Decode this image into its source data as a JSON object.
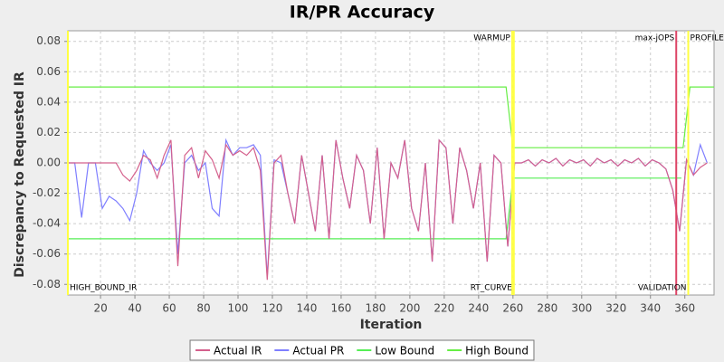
{
  "chart_data": {
    "type": "line",
    "title": "IR/PR Accuracy",
    "x_label": "Iteration",
    "y_label": "Discrepancy to Requested IR",
    "xlim": [
      1,
      377
    ],
    "ylim": [
      -0.087,
      0.087
    ],
    "xticks": [
      20,
      40,
      60,
      80,
      100,
      120,
      140,
      160,
      180,
      200,
      220,
      240,
      260,
      280,
      300,
      320,
      340,
      360
    ],
    "yticks": [
      -0.08,
      -0.06,
      -0.04,
      -0.02,
      {
        "value": 0,
        "label": "0.00"
      },
      0.02,
      0.04,
      0.06,
      0.08
    ],
    "grid": true,
    "legend": "bottom",
    "series": [
      {
        "name": "Actual IR",
        "color": "#d4608c",
        "x": [
          1,
          5,
          9,
          13,
          17,
          21,
          25,
          29,
          33,
          37,
          41,
          45,
          49,
          53,
          57,
          61,
          65,
          69,
          73,
          77,
          81,
          85,
          89,
          93,
          97,
          101,
          105,
          109,
          113,
          117,
          121,
          125,
          129,
          133,
          137,
          141,
          145,
          149,
          153,
          157,
          161,
          165,
          169,
          173,
          177,
          181,
          185,
          189,
          193,
          197,
          201,
          205,
          209,
          213,
          217,
          221,
          225,
          229,
          233,
          237,
          241,
          245,
          249,
          253,
          257,
          261,
          265,
          269,
          273,
          277,
          281,
          285,
          289,
          293,
          297,
          301,
          305,
          309,
          313,
          317,
          321,
          325,
          329,
          333,
          337,
          341,
          345,
          349,
          353,
          357,
          361,
          365,
          369,
          373
        ],
        "values": [
          0,
          0,
          0,
          0,
          0,
          0,
          0,
          0,
          -0.008,
          -0.012,
          -0.005,
          0.005,
          0.002,
          -0.01,
          0.005,
          0.015,
          -0.068,
          0.005,
          0.01,
          -0.01,
          0.008,
          0.002,
          -0.01,
          0.012,
          0.005,
          0.008,
          0.005,
          0.01,
          -0.005,
          -0.077,
          0,
          0.005,
          -0.02,
          -0.04,
          0.005,
          -0.02,
          -0.045,
          0.005,
          -0.05,
          0.015,
          -0.01,
          -0.03,
          0.005,
          -0.005,
          -0.04,
          0.01,
          -0.05,
          0,
          -0.01,
          0.015,
          -0.03,
          -0.045,
          0,
          -0.065,
          0.015,
          0.01,
          -0.04,
          0.01,
          -0.005,
          -0.03,
          0,
          -0.065,
          0.005,
          0,
          -0.055,
          0,
          0,
          0.002,
          -0.002,
          0.002,
          0,
          0.003,
          -0.002,
          0.002,
          0,
          0.002,
          -0.002,
          0.003,
          0,
          0.002,
          -0.002,
          0.002,
          0,
          0.003,
          -0.002,
          0.002,
          0,
          -0.004,
          -0.018,
          -0.045,
          0.002,
          -0.008,
          -0.003,
          0
        ]
      },
      {
        "name": "Actual PR",
        "color": "#7f7fff",
        "x": [
          1,
          5,
          9,
          13,
          17,
          21,
          25,
          29,
          33,
          37,
          41,
          45,
          49,
          53,
          57,
          61,
          65,
          69,
          73,
          77,
          81,
          85,
          89,
          93,
          97,
          101,
          105,
          109,
          113,
          117,
          121,
          125,
          129,
          133,
          137,
          141,
          145,
          149,
          153,
          157,
          161,
          165,
          169,
          173,
          177,
          181,
          185,
          189,
          193,
          197,
          201,
          205,
          209,
          213,
          217,
          221,
          225,
          229,
          233,
          237,
          241,
          245,
          249,
          253,
          257,
          261,
          265,
          269,
          273,
          277,
          281,
          285,
          289,
          293,
          297,
          301,
          305,
          309,
          313,
          317,
          321,
          325,
          329,
          333,
          337,
          341,
          345,
          349,
          353,
          357,
          361,
          365,
          369,
          373
        ],
        "values": [
          0,
          0,
          -0.036,
          0,
          0,
          -0.03,
          -0.022,
          -0.025,
          -0.03,
          -0.038,
          -0.02,
          0.008,
          0,
          -0.005,
          0,
          0.012,
          -0.06,
          0,
          0.005,
          -0.005,
          0,
          -0.03,
          -0.035,
          0.015,
          0.005,
          0.01,
          0.01,
          0.012,
          0.005,
          -0.075,
          0.002,
          0,
          -0.02,
          -0.04,
          0.005,
          -0.02,
          -0.045,
          0.005,
          -0.05,
          0.015,
          -0.01,
          -0.03,
          0.005,
          -0.005,
          -0.04,
          0.01,
          -0.05,
          0,
          -0.01,
          0.015,
          -0.03,
          -0.045,
          0,
          -0.065,
          0.015,
          0.01,
          -0.04,
          0.01,
          -0.005,
          -0.03,
          0,
          -0.065,
          0.005,
          0,
          -0.055,
          0,
          0,
          0.002,
          -0.002,
          0.002,
          0,
          0.003,
          -0.002,
          0.002,
          0,
          0.002,
          -0.002,
          0.003,
          0,
          0.002,
          -0.002,
          0.002,
          0,
          0.003,
          -0.002,
          0.002,
          0,
          -0.004,
          -0.018,
          -0.045,
          0.002,
          -0.008,
          0.012,
          0
        ]
      },
      {
        "name": "Low Bound",
        "color": "#55ee55",
        "x": [
          1,
          256,
          260,
          358
        ],
        "values": [
          -0.05,
          -0.05,
          -0.01,
          -0.01
        ]
      },
      {
        "name": "High Bound",
        "color": "#66ee44",
        "x": [
          1,
          256,
          260,
          359,
          363,
          377
        ],
        "values": [
          0.05,
          0.05,
          0.01,
          0.01,
          0.05,
          0.05
        ]
      }
    ],
    "markers": [
      {
        "label": "HIGH_BOUND_IR",
        "x": 1,
        "color": "#ffff44",
        "position": "bottom",
        "anchor": "start"
      },
      {
        "label": "WARMUP",
        "x": 259.5,
        "color": "#ffff44",
        "position": "top",
        "anchor": "end"
      },
      {
        "label": "RT_CURVE",
        "x": 260.5,
        "color": "#ffff44",
        "position": "bottom",
        "anchor": "end"
      },
      {
        "label": "max-jOPS",
        "x": 355,
        "color": "#dd4466",
        "position": "top",
        "anchor": "end"
      },
      {
        "label": "VALIDATION",
        "x": 362,
        "color": "#ffff44",
        "position": "bottom",
        "anchor": "end"
      },
      {
        "label": "PROFILE",
        "x": 362,
        "color": "#ffff44",
        "position": "top",
        "anchor": "start"
      }
    ]
  }
}
